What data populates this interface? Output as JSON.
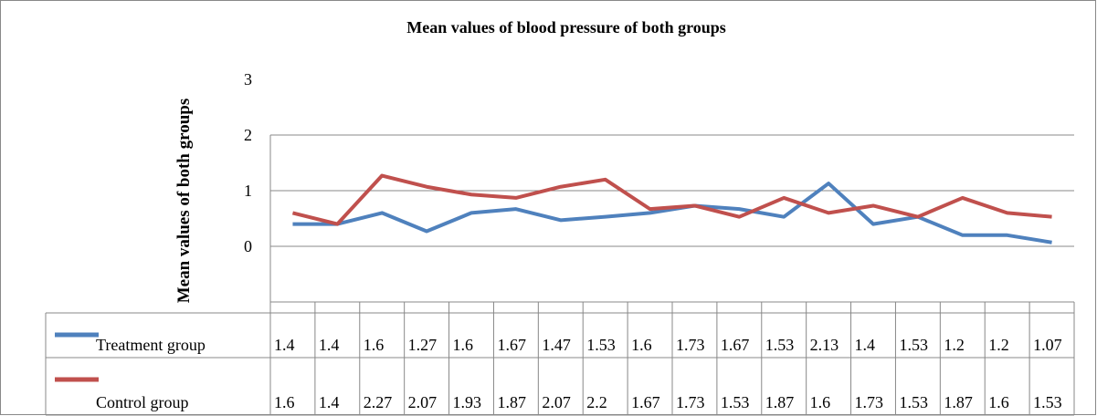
{
  "chart_data": {
    "type": "line",
    "title": "Mean values of blood pressure of both groups",
    "y_label": "Mean values of both groups",
    "categories": [
      null,
      null,
      null,
      null,
      null,
      null,
      null,
      null,
      null,
      null,
      null,
      null,
      null,
      null,
      null,
      null,
      null,
      null
    ],
    "series": [
      {
        "name": "Treatment group",
        "color": "#4f81bd",
        "values": [
          1.4,
          1.4,
          1.6,
          1.27,
          1.6,
          1.67,
          1.47,
          1.53,
          1.6,
          1.73,
          1.67,
          1.53,
          2.13,
          1.4,
          1.53,
          1.2,
          1.2,
          1.07
        ]
      },
      {
        "name": "Control group",
        "color": "#c0504d",
        "values": [
          1.6,
          1.4,
          2.27,
          2.07,
          1.93,
          1.87,
          2.07,
          2.2,
          1.67,
          1.73,
          1.53,
          1.87,
          1.6,
          1.73,
          1.53,
          1.87,
          1.6,
          1.53
        ]
      }
    ],
    "ylim": [
      0,
      3
    ],
    "yticks": [
      0,
      1,
      2,
      3
    ],
    "grid": true,
    "data_table": true
  }
}
